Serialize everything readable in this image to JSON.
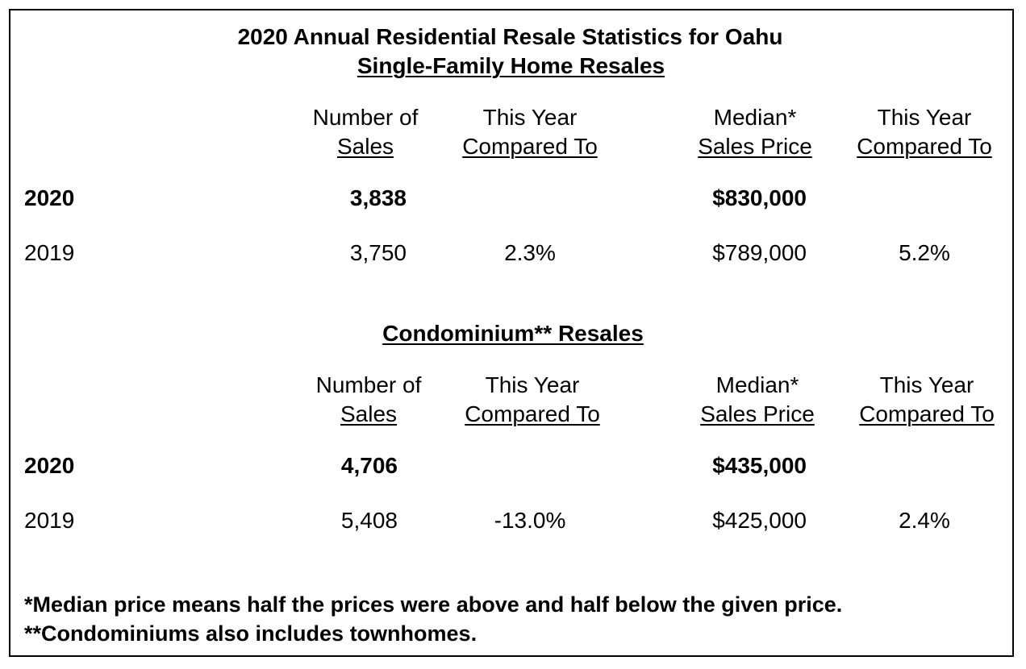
{
  "title": "2020 Annual Residential Resale Statistics for Oahu",
  "single_family": {
    "heading": "Single-Family Home Resales",
    "headers": {
      "sales_line1": "Number of",
      "sales_line2": "Sales",
      "cmp_sales_line1": "This Year",
      "cmp_sales_line2": "Compared To",
      "price_line1": "Median*",
      "price_line2": "Sales Price",
      "cmp_price_line1": "This Year",
      "cmp_price_line2": "Compared To"
    },
    "rows": [
      {
        "year": "2020",
        "sales": "3,838",
        "sales_change": "",
        "price": "$830,000",
        "price_change": ""
      },
      {
        "year": "2019",
        "sales": "3,750",
        "sales_change": "2.3%",
        "price": "$789,000",
        "price_change": "5.2%"
      }
    ]
  },
  "condo": {
    "heading": "Condominium** Resales",
    "headers": {
      "sales_line1": "Number of",
      "sales_line2": "Sales",
      "cmp_sales_line1": "This Year",
      "cmp_sales_line2": "Compared To",
      "price_line1": "Median*",
      "price_line2": "Sales Price",
      "cmp_price_line1": "This Year",
      "cmp_price_line2": "Compared To"
    },
    "rows": [
      {
        "year": "2020",
        "sales": "4,706",
        "sales_change": "",
        "price": "$435,000",
        "price_change": ""
      },
      {
        "year": "2019",
        "sales": "5,408",
        "sales_change": "-13.0%",
        "price": "$425,000",
        "price_change": "2.4%"
      }
    ]
  },
  "footnotes": [
    "*Median price means half the prices were above and half below the given price.",
    "**Condominiums also includes townhomes."
  ]
}
